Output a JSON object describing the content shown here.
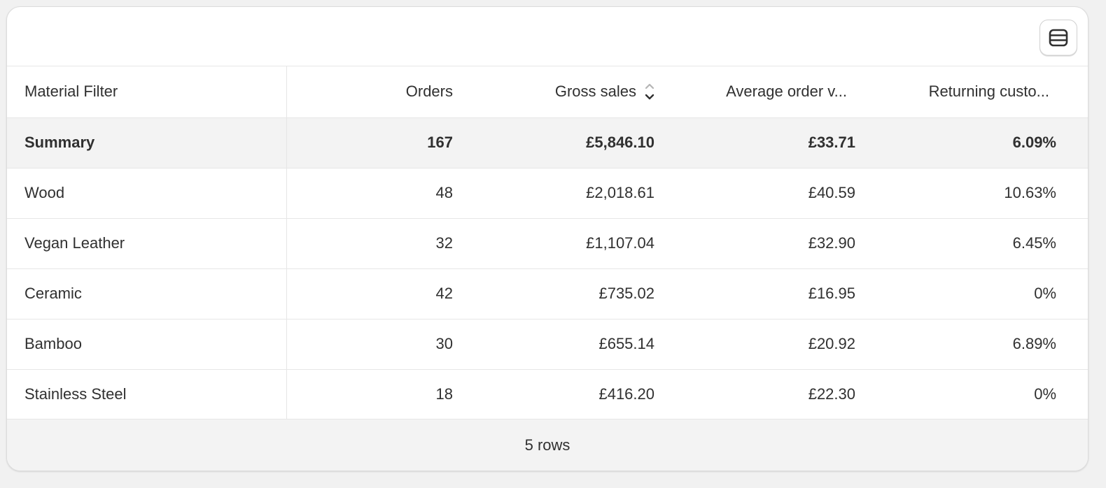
{
  "toolbar": {
    "view_icon": "table-view-icon"
  },
  "table": {
    "columns": [
      {
        "label": "Material Filter"
      },
      {
        "label": "Orders"
      },
      {
        "label": "Gross sales",
        "sort_icon": "sort-icon"
      },
      {
        "label": "Average order v..."
      },
      {
        "label": "Returning custo..."
      }
    ],
    "summary": {
      "label": "Summary",
      "orders": "167",
      "gross_sales": "£5,846.10",
      "aov": "£33.71",
      "returning": "6.09%"
    },
    "rows": [
      {
        "label": "Wood",
        "orders": "48",
        "gross_sales": "£2,018.61",
        "aov": "£40.59",
        "returning": "10.63%"
      },
      {
        "label": "Vegan Leather",
        "orders": "32",
        "gross_sales": "£1,107.04",
        "aov": "£32.90",
        "returning": "6.45%"
      },
      {
        "label": "Ceramic",
        "orders": "42",
        "gross_sales": "£735.02",
        "aov": "£16.95",
        "returning": "0%"
      },
      {
        "label": "Bamboo",
        "orders": "30",
        "gross_sales": "£655.14",
        "aov": "£20.92",
        "returning": "6.89%"
      },
      {
        "label": "Stainless Steel",
        "orders": "18",
        "gross_sales": "£416.20",
        "aov": "£22.30",
        "returning": "0%"
      }
    ]
  },
  "footer": {
    "row_count": "5 rows"
  }
}
